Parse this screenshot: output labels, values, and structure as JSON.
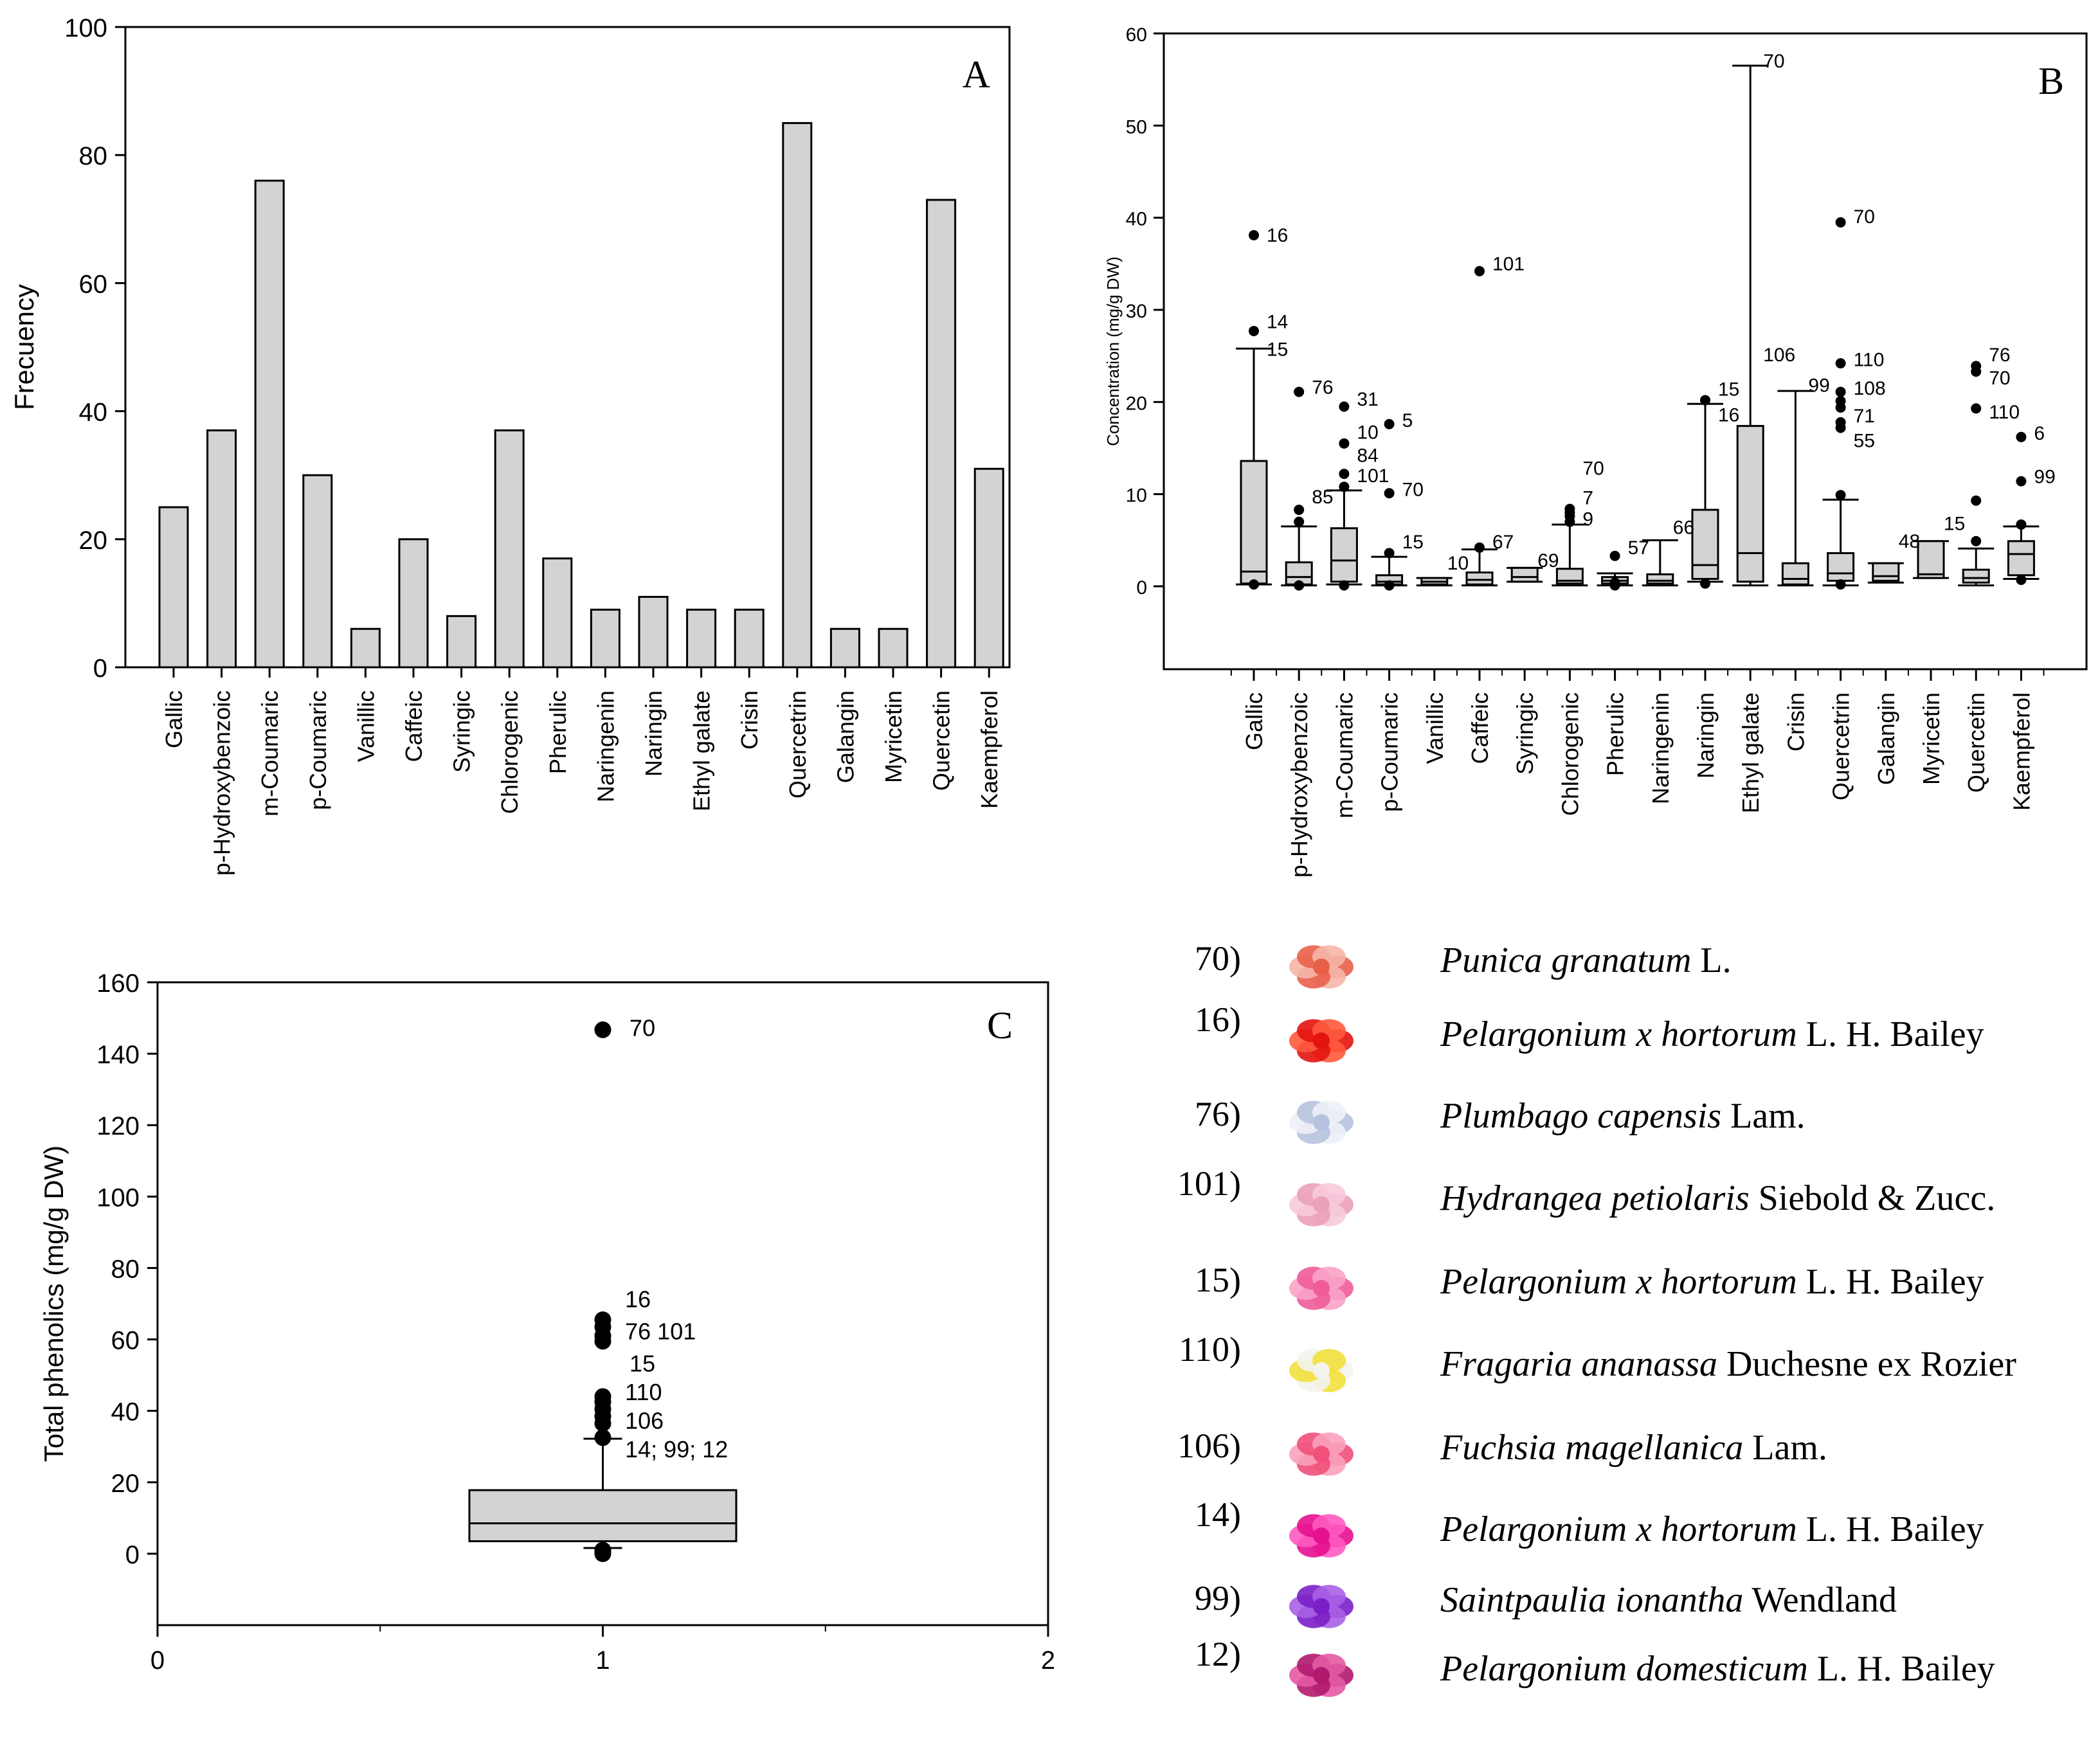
{
  "chart_data": [
    {
      "panel": "A",
      "type": "bar",
      "panel_label": "A",
      "ylabel": "Frecuency",
      "ylim": [
        0,
        100
      ],
      "yticks": [
        0,
        20,
        40,
        60,
        80,
        100
      ],
      "categories": [
        "Gallic",
        "p-Hydroxybenzoic",
        "m-Coumaric",
        "p-Coumaric",
        "Vanillic",
        "Caffeic",
        "Syringic",
        "Chlorogenic",
        "Pherulic",
        "Naringenin",
        "Naringin",
        "Ethyl galate",
        "Crisin",
        "Quercetrin",
        "Galangin",
        "Myricetin",
        "Quercetin",
        "Kaempferol"
      ],
      "values": [
        25,
        37,
        76,
        30,
        6,
        20,
        8,
        37,
        17,
        9,
        11,
        9,
        9,
        85,
        6,
        6,
        73,
        31
      ],
      "bar_color": "#d3d3d3"
    },
    {
      "panel": "B",
      "type": "box",
      "panel_label": "B",
      "ylabel": "Concentration (mg/g DW)",
      "ylim": [
        -9,
        60
      ],
      "yticks": [
        0,
        10,
        20,
        30,
        40,
        50,
        60
      ],
      "categories": [
        "Gallic",
        "p-Hydroxybenzoic",
        "m-Coumaric",
        "p-Coumaric",
        "Vanillic",
        "Caffeic",
        "Syringic",
        "Chlorogenic",
        "Pherulic",
        "Naringenin",
        "Naringin",
        "Ethyl galate",
        "Crisin",
        "Quercetrin",
        "Galangin",
        "Myricetin",
        "Quercetin",
        "Kaempferol"
      ],
      "boxes": [
        {
          "wlo": 0.2,
          "q1": 0.3,
          "med": 1.6,
          "q3": 13.6,
          "whi": 25.8,
          "outliers": [
            0.2,
            27.7,
            38.1
          ]
        },
        {
          "wlo": 0.1,
          "q1": 0.2,
          "med": 1.0,
          "q3": 2.6,
          "whi": 6.5,
          "outliers": [
            0.1,
            7.0,
            8.3,
            21.1
          ]
        },
        {
          "wlo": 0.2,
          "q1": 0.5,
          "med": 2.8,
          "q3": 6.3,
          "whi": 10.4,
          "outliers": [
            0.1,
            10.8,
            12.2,
            15.5,
            19.5
          ]
        },
        {
          "wlo": 0.1,
          "q1": 0.2,
          "med": 0.5,
          "q3": 1.2,
          "whi": 3.2,
          "outliers": [
            0.1,
            3.6,
            10.1,
            17.6
          ]
        },
        {
          "wlo": 0.1,
          "q1": 0.2,
          "med": 0.5,
          "q3": 0.9,
          "whi": 0.9,
          "outliers": []
        },
        {
          "wlo": 0.1,
          "q1": 0.2,
          "med": 0.7,
          "q3": 1.5,
          "whi": 4.0,
          "outliers": [
            4.2,
            34.2
          ]
        },
        {
          "wlo": 0.5,
          "q1": 0.5,
          "med": 1.0,
          "q3": 2.0,
          "whi": 2.0,
          "outliers": []
        },
        {
          "wlo": 0.1,
          "q1": 0.3,
          "med": 0.6,
          "q3": 1.9,
          "whi": 6.7,
          "outliers": [
            7.0,
            7.6,
            8.0,
            8.4
          ]
        },
        {
          "wlo": 0.1,
          "q1": 0.3,
          "med": 0.6,
          "q3": 1.0,
          "whi": 1.4,
          "outliers": [
            0.1,
            0.4,
            3.3
          ]
        },
        {
          "wlo": 0.1,
          "q1": 0.3,
          "med": 0.6,
          "q3": 1.3,
          "whi": 5.0,
          "outliers": []
        },
        {
          "wlo": 0.5,
          "q1": 0.8,
          "med": 2.3,
          "q3": 8.3,
          "whi": 19.8,
          "outliers": [
            0.3,
            20.2
          ]
        },
        {
          "wlo": 0.1,
          "q1": 0.5,
          "med": 3.6,
          "q3": 17.4,
          "whi": 56.5,
          "outliers": []
        },
        {
          "wlo": 0.1,
          "q1": 0.2,
          "med": 0.8,
          "q3": 2.5,
          "whi": 21.2,
          "outliers": []
        },
        {
          "wlo": 0.1,
          "q1": 0.6,
          "med": 1.4,
          "q3": 3.6,
          "whi": 9.4,
          "outliers": [
            0.2,
            9.9,
            17.2,
            17.8,
            19.4,
            20.1,
            21.1,
            24.2,
            39.5
          ]
        },
        {
          "wlo": 0.4,
          "q1": 0.6,
          "med": 1.1,
          "q3": 2.5,
          "whi": 2.5,
          "outliers": []
        },
        {
          "wlo": 0.9,
          "q1": 0.9,
          "med": 1.3,
          "q3": 4.9,
          "whi": 4.9,
          "outliers": []
        },
        {
          "wlo": 0.1,
          "q1": 0.4,
          "med": 0.9,
          "q3": 1.8,
          "whi": 4.1,
          "outliers": [
            4.9,
            9.3,
            19.3,
            23.3,
            23.9
          ]
        },
        {
          "wlo": 0.8,
          "q1": 1.2,
          "med": 3.5,
          "q3": 4.9,
          "whi": 6.5,
          "outliers": [
            0.7,
            6.7,
            11.4,
            16.2
          ]
        }
      ],
      "annotations": [
        {
          "cat": 0,
          "y": 38.1,
          "text": "16"
        },
        {
          "cat": 0,
          "y": 28.7,
          "text": "14"
        },
        {
          "cat": 0,
          "y": 25.7,
          "text": "15"
        },
        {
          "cat": 1,
          "y": 21.6,
          "text": "76"
        },
        {
          "cat": 1,
          "y": 9.7,
          "text": "85"
        },
        {
          "cat": 2,
          "y": 20.3,
          "text": "31"
        },
        {
          "cat": 2,
          "y": 16.7,
          "text": "10"
        },
        {
          "cat": 2,
          "y": 14.2,
          "text": "84"
        },
        {
          "cat": 2,
          "y": 12.0,
          "text": "101"
        },
        {
          "cat": 3,
          "y": 18.0,
          "text": "5"
        },
        {
          "cat": 3,
          "y": 10.5,
          "text": "70"
        },
        {
          "cat": 3,
          "y": 4.8,
          "text": "15"
        },
        {
          "cat": 4,
          "y": 2.5,
          "text": "10"
        },
        {
          "cat": 5,
          "y": 35.0,
          "text": "101"
        },
        {
          "cat": 5,
          "y": 4.8,
          "text": "67"
        },
        {
          "cat": 6,
          "y": 2.8,
          "text": "69"
        },
        {
          "cat": 7,
          "y": 12.8,
          "text": "70"
        },
        {
          "cat": 7,
          "y": 9.6,
          "text": "7"
        },
        {
          "cat": 7,
          "y": 7.3,
          "text": "9"
        },
        {
          "cat": 8,
          "y": 4.2,
          "text": "57"
        },
        {
          "cat": 9,
          "y": 6.4,
          "text": "66"
        },
        {
          "cat": 10,
          "y": 21.4,
          "text": "15"
        },
        {
          "cat": 10,
          "y": 18.6,
          "text": "16"
        },
        {
          "cat": 11,
          "y": 25.1,
          "text": "106"
        },
        {
          "cat": 11,
          "y": 57.0,
          "text": "70"
        },
        {
          "cat": 12,
          "y": 21.8,
          "text": "99"
        },
        {
          "cat": 13,
          "y": 40.1,
          "text": "70"
        },
        {
          "cat": 13,
          "y": 24.6,
          "text": "110"
        },
        {
          "cat": 13,
          "y": 21.5,
          "text": "108"
        },
        {
          "cat": 13,
          "y": 18.5,
          "text": "71"
        },
        {
          "cat": 13,
          "y": 15.8,
          "text": "55"
        },
        {
          "cat": 14,
          "y": 4.9,
          "text": "48"
        },
        {
          "cat": 15,
          "y": 6.8,
          "text": "15"
        },
        {
          "cat": 16,
          "y": 25.1,
          "text": "76"
        },
        {
          "cat": 16,
          "y": 22.6,
          "text": "70"
        },
        {
          "cat": 16,
          "y": 18.9,
          "text": "110"
        },
        {
          "cat": 17,
          "y": 16.6,
          "text": "6"
        },
        {
          "cat": 17,
          "y": 11.9,
          "text": "99"
        }
      ],
      "box_color": "#d3d3d3"
    },
    {
      "panel": "C",
      "type": "box",
      "panel_label": "C",
      "ylabel": "Total phenolics (mg/g DW)",
      "xlim": [
        0,
        2
      ],
      "xticks": [
        0,
        1,
        2
      ],
      "ylim": [
        -20,
        160
      ],
      "yticks": [
        0,
        20,
        40,
        60,
        80,
        100,
        120,
        140,
        160
      ],
      "box": {
        "x": 1,
        "wlo": 1.6,
        "q1": 3.5,
        "med": 8.5,
        "q3": 17.8,
        "whi": 32.2,
        "outliers": [
          0.0,
          0.5,
          1.0,
          32.5,
          36.5,
          38.5,
          40.5,
          42.5,
          44.0,
          59.5,
          61.0,
          63.5,
          65.5,
          146.7
        ]
      },
      "annotations": [
        {
          "x": 1.06,
          "y": 147.5,
          "text": "70"
        },
        {
          "x": 1.05,
          "y": 71.5,
          "text": "16"
        },
        {
          "x": 1.05,
          "y": 62.5,
          "text": "76   101"
        },
        {
          "x": 1.06,
          "y": 53.5,
          "text": "15"
        },
        {
          "x": 1.05,
          "y": 45.5,
          "text": "110"
        },
        {
          "x": 1.05,
          "y": 37.5,
          "text": "106"
        },
        {
          "x": 1.05,
          "y": 29.5,
          "text": "14; 99; 12"
        }
      ],
      "box_color": "#d3d3d3"
    }
  ],
  "legend": [
    {
      "num": "70)",
      "species": "Punica granatum",
      "author": " L.",
      "flower": "flower-punica",
      "colors": [
        "#e8604a",
        "#f6b6a8"
      ]
    },
    {
      "num": "16)",
      "species": "Pelargonium x hortorum",
      "author": " L. H. Bailey",
      "flower": "flower-pelargonium-red",
      "colors": [
        "#e3140f",
        "#ff5a3c"
      ]
    },
    {
      "num": "76)",
      "species": "Plumbago capensis",
      "author": " Lam.",
      "flower": "flower-plumbago",
      "colors": [
        "#b7c3de",
        "#eef1f8"
      ]
    },
    {
      "num": "101)",
      "species": "Hydrangea petiolaris",
      "author": " Siebold & Zucc.",
      "flower": "flower-hydrangea",
      "colors": [
        "#eba0bb",
        "#f6cadb"
      ]
    },
    {
      "num": "15)",
      "species": "Pelargonium x hortorum",
      "author": " L. H. Bailey",
      "flower": "flower-pelargonium-pink",
      "colors": [
        "#ef5c98",
        "#f8a3c6"
      ]
    },
    {
      "num": "110)",
      "species": "Fragaria ananassa",
      "author": " Duchesne ex Rozier",
      "flower": "flower-fragaria",
      "colors": [
        "#f3f3f0",
        "#f2e03c"
      ]
    },
    {
      "num": "106)",
      "species": "Fuchsia magellanica",
      "author": " Lam.",
      "flower": "flower-fuchsia",
      "colors": [
        "#f0507a",
        "#f9a2bc"
      ]
    },
    {
      "num": "14)",
      "species": "Pelargonium x hortorum",
      "author": " L. H. Bailey",
      "flower": "flower-pelargonium-magenta",
      "colors": [
        "#e5108f",
        "#ff5ac0"
      ]
    },
    {
      "num": "99)",
      "species": "Saintpaulia ionantha",
      "author": " Wendland",
      "flower": "flower-saintpaulia",
      "colors": [
        "#7a1fc8",
        "#a860e6"
      ]
    },
    {
      "num": "12)",
      "species": "Pelargonium domesticum",
      "author": " L. H. Bailey",
      "flower": "flower-pelargonium-domesticum",
      "colors": [
        "#b0196d",
        "#e45aa3"
      ]
    }
  ]
}
